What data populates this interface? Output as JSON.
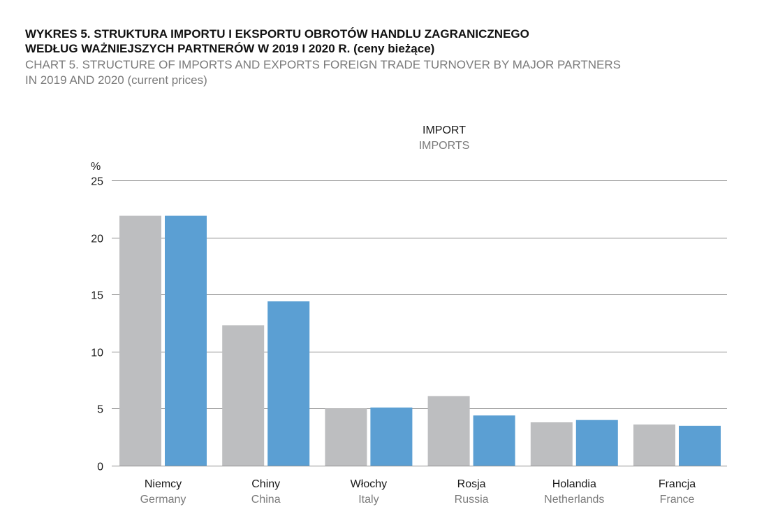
{
  "header": {
    "title_pl_line1": "WYKRES 5. STRUKTURA IMPORTU I EKSPORTU OBROTÓW HANDLU ZAGRANICZNEGO",
    "title_pl_line2": "WEDŁUG WAŻNIEJSZYCH PARTNERÓW W 2019 I 2020 R. (ceny bieżące)",
    "title_en_line1": "CHART 5. STRUCTURE OF IMPORTS AND EXPORTS FOREIGN TRADE TURNOVER BY MAJOR PARTNERS",
    "title_en_line2": "IN 2019 AND 2020 (current prices)"
  },
  "colors": {
    "series_2019": "#bdbec0",
    "series_2020": "#5b9fd3",
    "grid": "#8c8c8c",
    "axis_text": "#1a1a1a",
    "secondary_text": "#7a7a7a"
  },
  "chart_data": {
    "type": "bar",
    "title": "IMPORT",
    "subtitle": "IMPORTS",
    "ylabel": "%",
    "xlabel": "",
    "ylim": [
      0,
      25
    ],
    "yticks": [
      0,
      5,
      10,
      15,
      20,
      25
    ],
    "grid": true,
    "categories": [
      "Niemcy",
      "Chiny",
      "Włochy",
      "Rosja",
      "Holandia",
      "Francja"
    ],
    "categories_en": [
      "Germany",
      "China",
      "Italy",
      "Russia",
      "Netherlands",
      "France"
    ],
    "series": [
      {
        "values": [
          21.9,
          12.3,
          5.0,
          6.1,
          3.8,
          3.6
        ]
      },
      {
        "values": [
          21.9,
          14.4,
          5.1,
          4.4,
          4.0,
          3.5
        ]
      }
    ]
  }
}
